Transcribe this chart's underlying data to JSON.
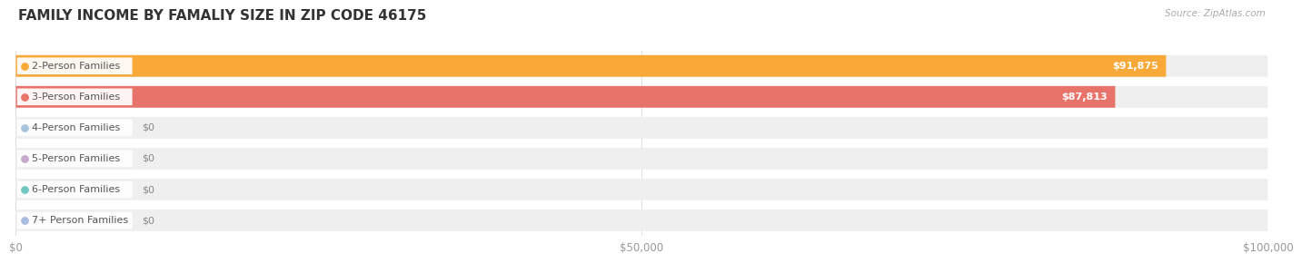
{
  "title": "FAMILY INCOME BY FAMALIY SIZE IN ZIP CODE 46175",
  "source": "Source: ZipAtlas.com",
  "categories": [
    "2-Person Families",
    "3-Person Families",
    "4-Person Families",
    "5-Person Families",
    "6-Person Families",
    "7+ Person Families"
  ],
  "values": [
    91875,
    87813,
    0,
    0,
    0,
    0
  ],
  "bar_colors": [
    "#F9A938",
    "#E8736A",
    "#A8C4DC",
    "#C9AACF",
    "#72C8C0",
    "#AABCE0"
  ],
  "value_labels": [
    "$91,875",
    "$87,813",
    "$0",
    "$0",
    "$0",
    "$0"
  ],
  "xlim": [
    0,
    100000
  ],
  "xticks": [
    0,
    50000,
    100000
  ],
  "xtick_labels": [
    "$0",
    "$50,000",
    "$100,000"
  ],
  "background_color": "#ffffff",
  "bar_bg_color": "#efefef",
  "title_fontsize": 11,
  "label_fontsize": 8,
  "value_fontsize": 8
}
